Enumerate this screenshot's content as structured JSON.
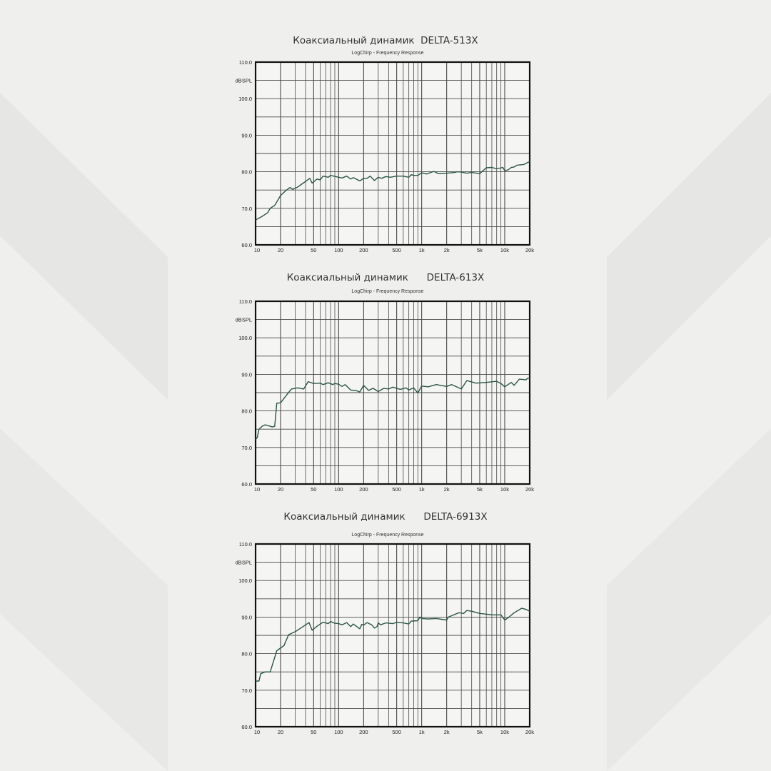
{
  "colors": {
    "line": "#2b5643",
    "grid": "#4a4a4a",
    "frame": "#111111",
    "plot_bg": "#f5f5f3",
    "background": "#efefed"
  },
  "chart_data": [
    {
      "type": "line",
      "title": "Коаксиальный динамик  DELTA-513X",
      "subtitle": "LogChirp - Frequency Response",
      "ylabel": "dBSPL",
      "xscale": "log",
      "xlim": [
        10,
        20000
      ],
      "ylim": [
        60,
        110
      ],
      "grid": true,
      "x_ticks": [
        10,
        20,
        50,
        100,
        200,
        500,
        1000,
        2000,
        5000,
        10000,
        20000
      ],
      "x_tick_labels": [
        "10",
        "20",
        "50",
        "100",
        "200",
        "500",
        "1k",
        "2k",
        "5k",
        "10k",
        "20k"
      ],
      "y_ticks": [
        60,
        70,
        80,
        90,
        100,
        110
      ],
      "y_tick_labels": [
        "60.0",
        "70.0",
        "80.0",
        "90.0",
        "100.0",
        "110.0"
      ],
      "series": [
        {
          "points": [
            [
              10,
              66.8
            ],
            [
              12,
              67.8
            ],
            [
              14,
              68.8
            ],
            [
              15,
              70
            ],
            [
              17,
              70.8
            ],
            [
              20,
              73.5
            ],
            [
              23,
              74.8
            ],
            [
              26,
              75.7
            ],
            [
              28,
              75.2
            ],
            [
              32,
              75.8
            ],
            [
              38,
              77
            ],
            [
              45,
              78.2
            ],
            [
              48,
              76.9
            ],
            [
              55,
              78
            ],
            [
              60,
              77.8
            ],
            [
              65,
              78.8
            ],
            [
              75,
              78.5
            ],
            [
              80,
              79
            ],
            [
              100,
              78.5
            ],
            [
              110,
              78.3
            ],
            [
              125,
              78.8
            ],
            [
              140,
              78
            ],
            [
              150,
              78.4
            ],
            [
              180,
              77.5
            ],
            [
              200,
              78.2
            ],
            [
              220,
              78.2
            ],
            [
              240,
              78.8
            ],
            [
              270,
              77.6
            ],
            [
              300,
              78.5
            ],
            [
              330,
              78.2
            ],
            [
              370,
              78.7
            ],
            [
              420,
              78.5
            ],
            [
              500,
              78.8
            ],
            [
              600,
              78.8
            ],
            [
              700,
              78.5
            ],
            [
              750,
              79.2
            ],
            [
              800,
              79
            ],
            [
              900,
              79
            ],
            [
              1000,
              79.7
            ],
            [
              1150,
              79.4
            ],
            [
              1400,
              80.1
            ],
            [
              1600,
              79.5
            ],
            [
              2000,
              79.6
            ],
            [
              2500,
              79.8
            ],
            [
              2700,
              80
            ],
            [
              3000,
              79.9
            ],
            [
              3500,
              79.6
            ],
            [
              4000,
              79.8
            ],
            [
              5000,
              79.5
            ],
            [
              6000,
              81.1
            ],
            [
              7000,
              81.2
            ],
            [
              8000,
              80.8
            ],
            [
              9500,
              81.2
            ],
            [
              10000,
              80.3
            ],
            [
              11000,
              80.5
            ],
            [
              12000,
              81.2
            ],
            [
              13000,
              81.3
            ],
            [
              14000,
              81.8
            ],
            [
              17000,
              82
            ],
            [
              20000,
              82.8
            ]
          ]
        }
      ]
    },
    {
      "type": "line",
      "title": "Коаксиальный динамик      DELTA-613X",
      "subtitle": "LogChirp - Frequency Response",
      "ylabel": "dBSPL",
      "xscale": "log",
      "xlim": [
        10,
        20000
      ],
      "ylim": [
        60,
        110
      ],
      "grid": true,
      "x_ticks": [
        10,
        20,
        50,
        100,
        200,
        500,
        1000,
        2000,
        5000,
        10000,
        20000
      ],
      "x_tick_labels": [
        "10",
        "20",
        "50",
        "100",
        "200",
        "500",
        "1k",
        "2k",
        "5k",
        "10k",
        "20k"
      ],
      "y_ticks": [
        60,
        70,
        80,
        90,
        100,
        110
      ],
      "y_tick_labels": [
        "60.0",
        "70.0",
        "80.0",
        "90.0",
        "100.0",
        "110.0"
      ],
      "series": [
        {
          "points": [
            [
              10,
              72.2
            ],
            [
              10.5,
              72.8
            ],
            [
              11,
              75
            ],
            [
              12,
              75.8
            ],
            [
              13,
              76.2
            ],
            [
              15,
              75.8
            ],
            [
              16,
              75.6
            ],
            [
              17,
              75.8
            ],
            [
              18,
              82.1
            ],
            [
              20,
              82.2
            ],
            [
              23,
              84
            ],
            [
              27,
              86
            ],
            [
              32,
              86.3
            ],
            [
              38,
              86
            ],
            [
              43,
              88
            ],
            [
              50,
              87.5
            ],
            [
              60,
              87.6
            ],
            [
              65,
              87.2
            ],
            [
              75,
              87.7
            ],
            [
              85,
              87.2
            ],
            [
              90,
              87.5
            ],
            [
              100,
              87.3
            ],
            [
              110,
              86.7
            ],
            [
              120,
              87.2
            ],
            [
              140,
              85.7
            ],
            [
              160,
              85.6
            ],
            [
              180,
              85.2
            ],
            [
              200,
              87
            ],
            [
              230,
              85.6
            ],
            [
              260,
              86.2
            ],
            [
              300,
              85.3
            ],
            [
              350,
              86.2
            ],
            [
              400,
              86
            ],
            [
              450,
              86.5
            ],
            [
              550,
              85.9
            ],
            [
              650,
              86.3
            ],
            [
              700,
              85.7
            ],
            [
              800,
              86.3
            ],
            [
              900,
              84.9
            ],
            [
              1000,
              86.8
            ],
            [
              1200,
              86.6
            ],
            [
              1500,
              87.2
            ],
            [
              2000,
              86.7
            ],
            [
              2300,
              87.2
            ],
            [
              3000,
              86
            ],
            [
              3500,
              88.3
            ],
            [
              4500,
              87.6
            ],
            [
              6000,
              87.8
            ],
            [
              8000,
              88.1
            ],
            [
              9000,
              87.5
            ],
            [
              10000,
              86.6
            ],
            [
              12000,
              87.8
            ],
            [
              13000,
              87
            ],
            [
              15000,
              88.7
            ],
            [
              18000,
              88.5
            ],
            [
              19000,
              89
            ],
            [
              20000,
              88.8
            ]
          ]
        }
      ]
    },
    {
      "type": "line",
      "title": "Коаксиальный динамик      DELTA-6913X",
      "subtitle": "LogChirp - Frequency Response",
      "ylabel": "dBSPL",
      "xscale": "log",
      "xlim": [
        10,
        20000
      ],
      "ylim": [
        60,
        110
      ],
      "grid": true,
      "x_ticks": [
        10,
        20,
        50,
        100,
        200,
        500,
        1000,
        2000,
        5000,
        10000,
        20000
      ],
      "x_tick_labels": [
        "10",
        "20",
        "50",
        "100",
        "200",
        "500",
        "1k",
        "2k",
        "5k",
        "10k",
        "20k"
      ],
      "y_ticks": [
        60,
        70,
        80,
        90,
        100,
        110
      ],
      "y_tick_labels": [
        "60.0",
        "70.0",
        "80.0",
        "90.0",
        "100.0",
        "110.0"
      ],
      "series": [
        {
          "points": [
            [
              10,
              72.5
            ],
            [
              11,
              72.5
            ],
            [
              11.5,
              74.5
            ],
            [
              13,
              75
            ],
            [
              15,
              75
            ],
            [
              18,
              80.8
            ],
            [
              22,
              82.2
            ],
            [
              25,
              85.2
            ],
            [
              30,
              86
            ],
            [
              35,
              87
            ],
            [
              44,
              88.5
            ],
            [
              48,
              86.4
            ],
            [
              55,
              87.5
            ],
            [
              65,
              88.6
            ],
            [
              75,
              88.2
            ],
            [
              80,
              88.8
            ],
            [
              90,
              88.3
            ],
            [
              100,
              88.2
            ],
            [
              110,
              87.9
            ],
            [
              125,
              88.5
            ],
            [
              140,
              87.4
            ],
            [
              150,
              88.1
            ],
            [
              180,
              86.8
            ],
            [
              190,
              88
            ],
            [
              200,
              87.8
            ],
            [
              220,
              88.5
            ],
            [
              250,
              87.9
            ],
            [
              270,
              87
            ],
            [
              290,
              87.4
            ],
            [
              300,
              88.4
            ],
            [
              320,
              87.9
            ],
            [
              370,
              88.4
            ],
            [
              450,
              88.2
            ],
            [
              500,
              88.6
            ],
            [
              600,
              88.4
            ],
            [
              700,
              88.1
            ],
            [
              750,
              88.9
            ],
            [
              900,
              89
            ],
            [
              950,
              90
            ],
            [
              1000,
              89.6
            ],
            [
              1200,
              89.5
            ],
            [
              1500,
              89.6
            ],
            [
              2000,
              89.2
            ],
            [
              2100,
              90
            ],
            [
              2800,
              91.2
            ],
            [
              3200,
              91
            ],
            [
              3500,
              91.8
            ],
            [
              4000,
              91.6
            ],
            [
              5000,
              91
            ],
            [
              6000,
              90.8
            ],
            [
              7000,
              90.6
            ],
            [
              9000,
              90.6
            ],
            [
              10000,
              89.2
            ],
            [
              11000,
              89.8
            ],
            [
              13000,
              91.2
            ],
            [
              16000,
              92.4
            ],
            [
              18000,
              92.1
            ],
            [
              20000,
              91.6
            ]
          ]
        }
      ]
    }
  ]
}
